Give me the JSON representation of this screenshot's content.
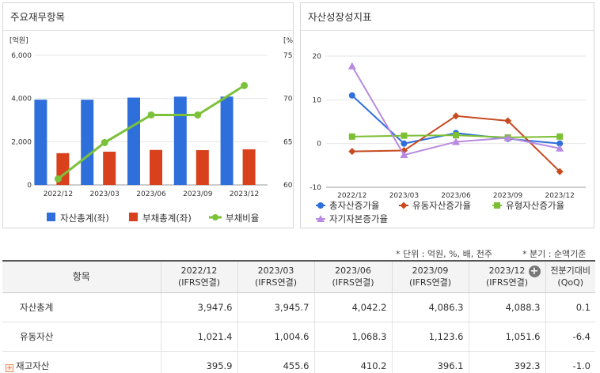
{
  "left_panel": {
    "title": "주요재무항목"
  },
  "right_panel": {
    "title": "자산성장성지표"
  },
  "note": {
    "unit": "* 단위 : 억원, %, 배, 천주",
    "period": "* 분기 : 순액기준"
  },
  "table": {
    "header_item": "항목",
    "periods": [
      {
        "date": "2022/12",
        "basis": "(IFRS연결)"
      },
      {
        "date": "2023/03",
        "basis": "(IFRS연결)"
      },
      {
        "date": "2023/06",
        "basis": "(IFRS연결)"
      },
      {
        "date": "2023/09",
        "basis": "(IFRS연결)"
      },
      {
        "date": "2023/12",
        "basis": "(IFRS연결)"
      }
    ],
    "qoq_header": {
      "line1": "전분기대비",
      "line2": "(QoQ)"
    },
    "rows": [
      {
        "label": "자산총계",
        "values": [
          "3,947.6",
          "3,945.7",
          "4,042.2",
          "4,086.3",
          "4,088.3"
        ],
        "qoq": "0.1"
      },
      {
        "label": "유동자산",
        "values": [
          "1,021.4",
          "1,004.6",
          "1,068.3",
          "1,123.6",
          "1,051.6"
        ],
        "qoq": "-6.4"
      },
      {
        "label": "재고자산",
        "values": [
          "395.9",
          "455.6",
          "410.2",
          "396.1",
          "392.3"
        ],
        "qoq": "-1.0"
      }
    ]
  },
  "chart_data": [
    {
      "type": "bar",
      "categories": [
        "2022/12",
        "2023/03",
        "2023/06",
        "2023/09",
        "2023/12"
      ],
      "left_unit": "[억원]",
      "right_unit": "[%]",
      "left_ticks": [
        "6,000",
        "4,000",
        "2,000",
        "0"
      ],
      "right_ticks": [
        "75",
        "70",
        "65",
        "60"
      ],
      "ylim_left": [
        0,
        6000
      ],
      "ylim_right": [
        60,
        75
      ],
      "series": [
        {
          "name": "자산총계(좌)",
          "type": "bar",
          "axis": "left",
          "color": "#2f6fdb",
          "values": [
            3947.6,
            3945.7,
            4042.2,
            4086.3,
            4088.3
          ]
        },
        {
          "name": "부채총계(좌)",
          "type": "bar",
          "axis": "left",
          "color": "#d9401c",
          "values": [
            1470,
            1540,
            1620,
            1610,
            1650
          ]
        },
        {
          "name": "부채비율",
          "type": "line",
          "axis": "right",
          "color": "#7cc13a",
          "values": [
            60.7,
            64.9,
            68.1,
            68.1,
            71.5
          ]
        }
      ],
      "legend": "bottom",
      "grid": "horizontal"
    },
    {
      "type": "line",
      "categories": [
        "2022/12",
        "2023/03",
        "2023/06",
        "2023/09",
        "2023/12"
      ],
      "y_ticks": [
        "20",
        "10",
        "0",
        "-10"
      ],
      "ylim": [
        -10,
        20
      ],
      "series": [
        {
          "name": "총자산증가율",
          "color": "#2f6fdb",
          "marker": "circle",
          "values": [
            11.0,
            0.0,
            2.4,
            1.1,
            0.0
          ]
        },
        {
          "name": "유동자산증가율",
          "color": "#c84a1e",
          "marker": "diamond",
          "values": [
            -1.8,
            -1.6,
            6.3,
            5.2,
            -6.4
          ]
        },
        {
          "name": "유형자산증가율",
          "color": "#7cbf32",
          "marker": "square",
          "values": [
            1.6,
            1.8,
            1.9,
            1.4,
            1.6
          ]
        },
        {
          "name": "자기자본증가율",
          "color": "#b88be0",
          "marker": "triangle",
          "values": [
            17.7,
            -2.6,
            0.4,
            1.3,
            -1.1
          ]
        }
      ],
      "legend": "bottom",
      "grid": "horizontal"
    }
  ]
}
